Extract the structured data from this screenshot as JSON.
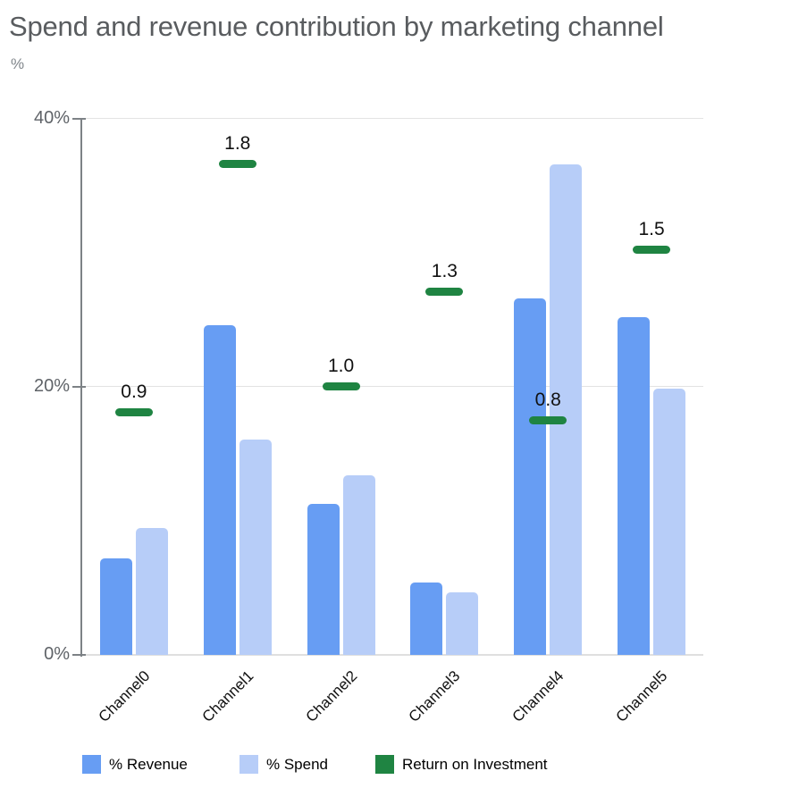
{
  "title": "Spend and revenue contribution by marketing channel",
  "y_axis": {
    "unit_label": "%",
    "ticks": [
      {
        "value": 0,
        "label": "0%"
      },
      {
        "value": 20,
        "label": "20%"
      },
      {
        "value": 40,
        "label": "40%"
      }
    ],
    "max": 40
  },
  "legend": [
    {
      "label": "% Revenue",
      "color": "#679df3"
    },
    {
      "label": "% Spend",
      "color": "#b7cdf8"
    },
    {
      "label": "Return on Investment",
      "color": "#1f8442"
    }
  ],
  "colors": {
    "revenue_bar": "#679df3",
    "spend_bar": "#b7cdf8",
    "roi_dash": "#1f8442",
    "gridline": "#e3e3e3",
    "axis": "#7d8286",
    "tick_label": "#5f6368",
    "title": "#595c5f"
  },
  "chart_data": {
    "type": "bar",
    "title": "Spend and revenue contribution by marketing channel",
    "categories": [
      "Channel0",
      "Channel1",
      "Channel2",
      "Channel3",
      "Channel4",
      "Channel5"
    ],
    "series": [
      {
        "name": "% Revenue",
        "type": "bar",
        "color": "#679df3",
        "values": [
          7.2,
          24.6,
          11.3,
          5.4,
          26.6,
          25.2
        ]
      },
      {
        "name": "% Spend",
        "type": "bar",
        "color": "#b7cdf8",
        "values": [
          9.5,
          16.1,
          13.4,
          4.7,
          36.6,
          19.9
        ]
      },
      {
        "name": "Return on Investment",
        "type": "dash",
        "color": "#1f8442",
        "values": [
          0.9,
          1.8,
          1.0,
          1.3,
          0.8,
          1.5
        ],
        "labels": [
          "0.9",
          "1.8",
          "1.0",
          "1.3",
          "0.8",
          "1.5"
        ],
        "axis_pct_positions": [
          18.1,
          36.6,
          20.0,
          27.1,
          17.5,
          30.2
        ]
      }
    ],
    "ylabel": "%",
    "ylim": [
      0,
      40
    ],
    "yticks": [
      0,
      20,
      40
    ],
    "grid": true,
    "legend_position": "bottom"
  }
}
